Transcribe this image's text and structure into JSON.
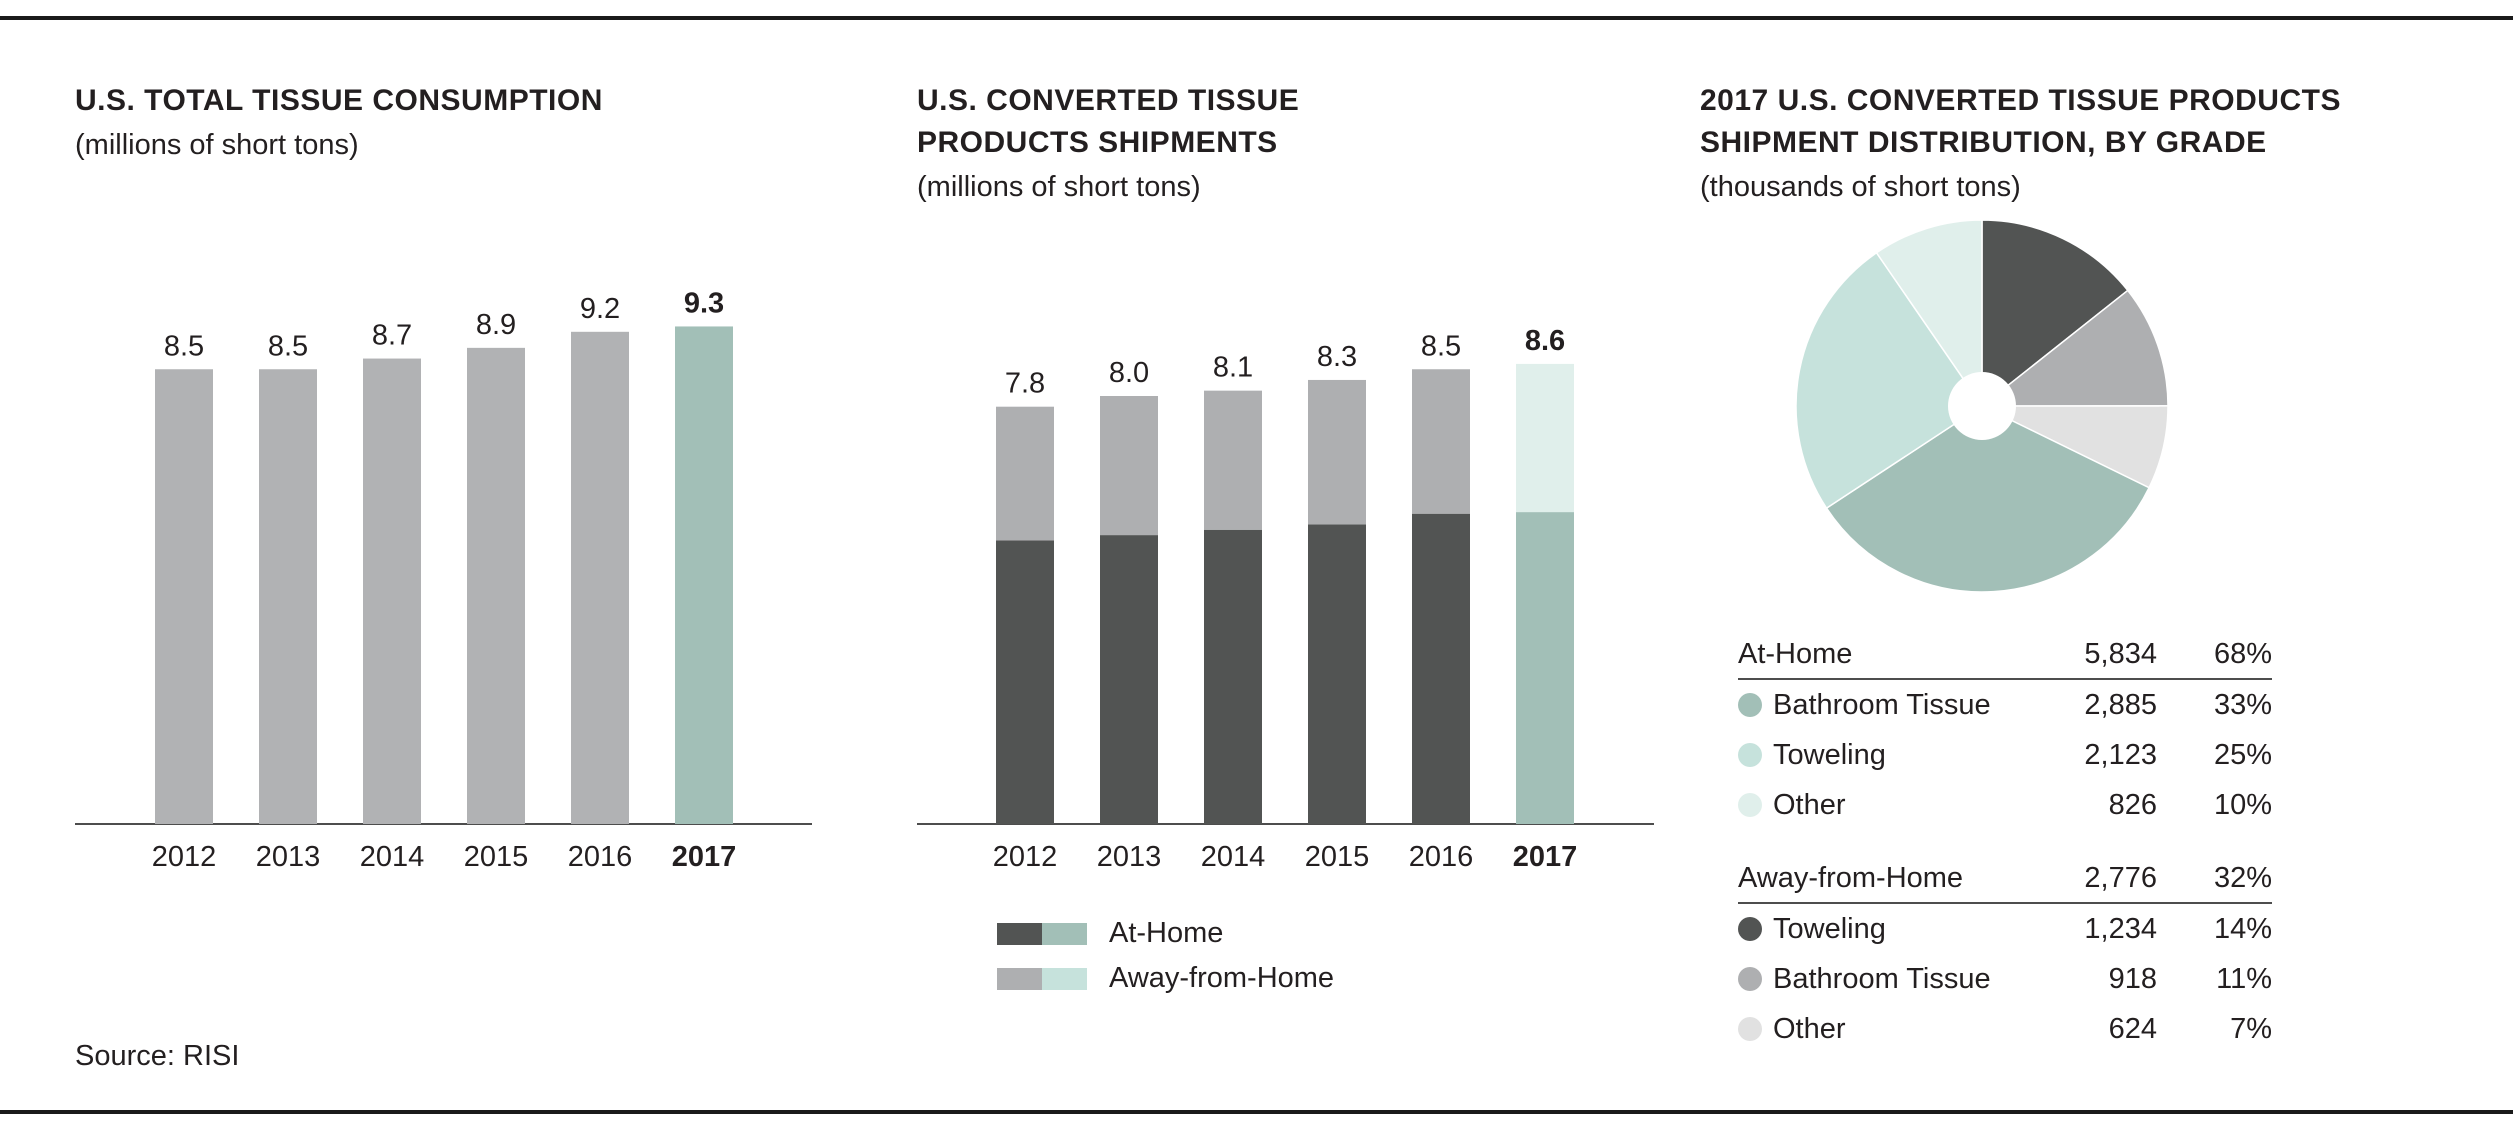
{
  "colors": {
    "gray_bar": "#b1b2b4",
    "teal_bar": "#a2bfb7",
    "dark": "#525453",
    "gray": "#aeafb1",
    "teal": "#a2bfb7",
    "light_teal": "#c6e2dc",
    "lighter_teal": "#e0efeb",
    "light_gray": "#e1e1e1",
    "axis": "#4d4d4d",
    "text": "#231f20"
  },
  "source": "Source: RISI",
  "chart_data": [
    {
      "type": "bar",
      "title": "U.S. TOTAL TISSUE CONSUMPTION",
      "subtitle": "(millions of short tons)",
      "categories": [
        "2012",
        "2013",
        "2014",
        "2015",
        "2016",
        "2017"
      ],
      "values": [
        8.5,
        8.5,
        8.7,
        8.9,
        9.2,
        9.3
      ],
      "value_labels": [
        "8.5",
        "8.5",
        "8.7",
        "8.9",
        "9.2",
        "9.3"
      ],
      "highlight_index": 5,
      "ylim": [
        0,
        10.5
      ]
    },
    {
      "type": "bar",
      "stacked": true,
      "title_lines": [
        "U.S. CONVERTED TISSUE",
        "PRODUCTS SHIPMENTS"
      ],
      "subtitle": "(millions of short tons)",
      "categories": [
        "2012",
        "2013",
        "2014",
        "2015",
        "2016",
        "2017"
      ],
      "series": [
        {
          "name": "At-Home",
          "values": [
            5.3,
            5.4,
            5.5,
            5.6,
            5.8,
            5.83
          ]
        },
        {
          "name": "Away-from-Home",
          "values": [
            2.5,
            2.6,
            2.6,
            2.7,
            2.7,
            2.77
          ]
        }
      ],
      "totals": [
        7.8,
        8.0,
        8.1,
        8.3,
        8.5,
        8.6
      ],
      "total_labels": [
        "7.8",
        "8.0",
        "8.1",
        "8.3",
        "8.5",
        "8.6"
      ],
      "highlight_index": 5,
      "ylim": [
        0,
        10.5
      ],
      "legend": [
        {
          "label": "At-Home"
        },
        {
          "label": "Away-from-Home"
        }
      ]
    },
    {
      "type": "pie",
      "title_lines": [
        "2017 U.S. CONVERTED TISSUE PRODUCTS",
        "SHIPMENT DISTRIBUTION, BY GRADE"
      ],
      "subtitle": "(thousands of short tons)",
      "groups": [
        {
          "name": "At-Home",
          "total": "5,834",
          "pct": "68%",
          "items": [
            {
              "name": "Bathroom Tissue",
              "value": 2885,
              "value_label": "2,885",
              "pct": "33%"
            },
            {
              "name": "Toweling",
              "value": 2123,
              "value_label": "2,123",
              "pct": "25%"
            },
            {
              "name": "Other",
              "value": 826,
              "value_label": "826",
              "pct": "10%"
            }
          ]
        },
        {
          "name": "Away-from-Home",
          "total": "2,776",
          "pct": "32%",
          "items": [
            {
              "name": "Toweling",
              "value": 1234,
              "value_label": "1,234",
              "pct": "14%"
            },
            {
              "name": "Bathroom Tissue",
              "value": 918,
              "value_label": "918",
              "pct": "11%"
            },
            {
              "name": "Other",
              "value": 624,
              "value_label": "624",
              "pct": "7%"
            }
          ]
        }
      ]
    }
  ]
}
